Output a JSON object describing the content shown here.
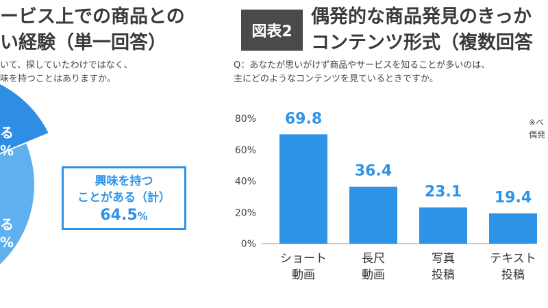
{
  "left_panel": {
    "title_lines": [
      "ービス上での商品との",
      "い経験（単一回答）"
    ],
    "question_lines": [
      "いて、探していたわけではなく、",
      "味を持つことはありますか。"
    ],
    "pie_labels": [
      "る",
      "%",
      "る",
      "%"
    ],
    "summary": {
      "line1": "興味を持つ",
      "line2": "ことがある（計）",
      "value": "64.5",
      "unit": "%"
    },
    "colors": {
      "dark_blue": "#2d8ee4",
      "light_blue": "#5fb0ef"
    }
  },
  "right_panel": {
    "badge": "図表2",
    "title_lines": [
      "偶発的な商品発見のきっか",
      "コンテンツ形式（複数回答"
    ],
    "question_lines": [
      "Q：あなたが思いがけず商品やサービスを知ることが多いのは、",
      "主にどのようなコンテンツを見ているときですか。"
    ],
    "note_lines": [
      "※ベ",
      "偶発"
    ]
  },
  "chart_data": {
    "type": "bar",
    "categories": [
      [
        "ショート",
        "動画"
      ],
      [
        "長尺",
        "動画"
      ],
      [
        "写真",
        "投稿"
      ],
      [
        "テキスト",
        "投稿"
      ]
    ],
    "values": [
      69.8,
      36.4,
      23.1,
      19.4
    ],
    "value_labels": [
      "69.8",
      "36.4",
      "23.1",
      "19.4"
    ],
    "yticks": [
      "80%",
      "60%",
      "40%",
      "20%",
      "0%"
    ],
    "ylim": [
      0,
      80
    ],
    "bar_color": "#2d93e6",
    "label_color": "#2d93e6"
  }
}
